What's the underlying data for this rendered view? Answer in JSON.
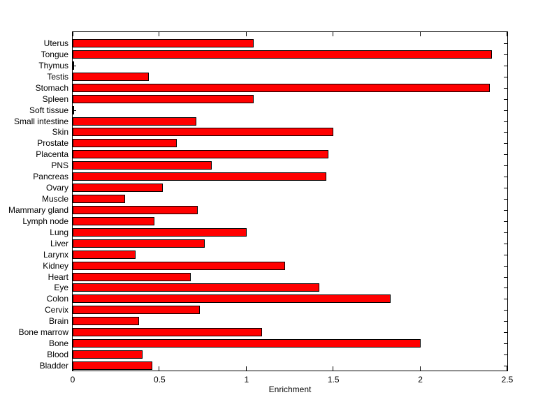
{
  "figure": {
    "background": "#ffffff",
    "axis_color": "#000000",
    "text_color": "#000000"
  },
  "chart_data": {
    "type": "bar",
    "orientation": "horizontal",
    "title": "",
    "xlabel": "Enrichment",
    "ylabel": "",
    "xlim": [
      0,
      2.5
    ],
    "x_tick_values": [
      0,
      0.5,
      1,
      1.5,
      2,
      2.5
    ],
    "x_tick_labels": [
      "0",
      "0.5",
      "1",
      "1.5",
      "2",
      "2.5"
    ],
    "grid": false,
    "legend": null,
    "bar_color": "#ff0000",
    "bar_edge_color": "#000000",
    "categories": [
      "Uterus",
      "Tongue",
      "Thymus",
      "Testis",
      "Stomach",
      "Spleen",
      "Soft tissue",
      "Small intestine",
      "Skin",
      "Prostate",
      "Placenta",
      "PNS",
      "Pancreas",
      "Ovary",
      "Muscle",
      "Mammary gland",
      "Lymph node",
      "Lung",
      "Liver",
      "Larynx",
      "Kidney",
      "Heart",
      "Eye",
      "Colon",
      "Cervix",
      "Brain",
      "Bone marrow",
      "Bone",
      "Blood",
      "Bladder"
    ],
    "values": [
      1.04,
      2.41,
      0.01,
      0.44,
      2.4,
      1.04,
      0.01,
      0.71,
      1.5,
      0.6,
      1.47,
      0.8,
      1.46,
      0.52,
      0.3,
      0.72,
      0.47,
      1.0,
      0.76,
      0.36,
      1.22,
      0.68,
      1.42,
      1.83,
      0.73,
      0.38,
      1.09,
      2.0,
      0.4,
      0.46
    ]
  }
}
